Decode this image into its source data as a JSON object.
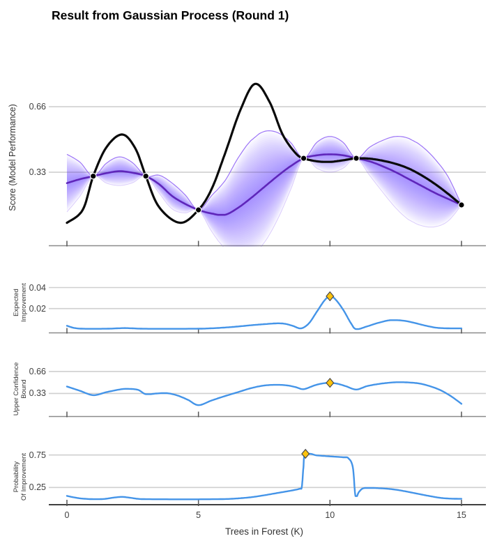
{
  "title": "Result from Gaussian Process (Round 1)",
  "colors": {
    "true_function": "#0a0a0a",
    "gp_mean": "#5B21B6",
    "gp_band": "#7C3AED",
    "gp_band_edge": "#8B5CF6",
    "acquisition_line": "#4494E8",
    "best_marker_fill": "#FFC30B",
    "best_marker_stroke": "#4a4a4a",
    "observation_fill": "#000000",
    "observation_ring": "#ffffff",
    "gridline": "#cfcfcf",
    "axis": "#8a8a8a",
    "axis_bottom": "#3f3f3f"
  },
  "chart_data": {
    "type": "line",
    "x_axis": {
      "label": "Trees in Forest (K)",
      "range": [
        0,
        15
      ],
      "ticks": [
        0,
        5,
        10,
        15
      ]
    },
    "panels": [
      {
        "key": "gp",
        "ylabel": "Score (Model Performance)",
        "yticks": [
          0.33,
          0.66
        ],
        "gp_grid_x": [
          0,
          0.5,
          1,
          1.5,
          2,
          2.5,
          3,
          3.5,
          4,
          4.5,
          5,
          5.5,
          6,
          6.5,
          7,
          7.5,
          8,
          8.5,
          9,
          9.5,
          10,
          10.5,
          11,
          11.5,
          12,
          12.5,
          13,
          13.5,
          14,
          14.5,
          15
        ],
        "gp_mean": [
          0.275,
          0.295,
          0.31,
          0.325,
          0.335,
          0.327,
          0.31,
          0.27,
          0.21,
          0.17,
          0.14,
          0.122,
          0.115,
          0.15,
          0.2,
          0.255,
          0.31,
          0.36,
          0.4,
          0.415,
          0.42,
          0.415,
          0.4,
          0.385,
          0.36,
          0.33,
          0.295,
          0.26,
          0.225,
          0.195,
          0.165
        ],
        "gp_sigma": [
          0.145,
          0.085,
          0,
          0.05,
          0.072,
          0.05,
          0,
          0.045,
          0.065,
          0.045,
          0,
          0.09,
          0.17,
          0.25,
          0.29,
          0.28,
          0.22,
          0.12,
          0,
          0.065,
          0.09,
          0.065,
          0,
          0.07,
          0.13,
          0.18,
          0.205,
          0.2,
          0.17,
          0.11,
          0
        ],
        "true_function": [
          [
            0,
            0.075
          ],
          [
            0.6,
            0.14
          ],
          [
            1,
            0.31
          ],
          [
            1.5,
            0.455
          ],
          [
            2.1,
            0.52
          ],
          [
            2.6,
            0.45
          ],
          [
            3,
            0.31
          ],
          [
            3.5,
            0.155
          ],
          [
            4.3,
            0.075
          ],
          [
            5,
            0.14
          ],
          [
            5.5,
            0.245
          ],
          [
            6,
            0.42
          ],
          [
            6.6,
            0.645
          ],
          [
            7.15,
            0.775
          ],
          [
            7.7,
            0.685
          ],
          [
            8.2,
            0.52
          ],
          [
            8.7,
            0.425
          ],
          [
            9,
            0.4
          ],
          [
            9.5,
            0.385
          ],
          [
            10,
            0.382
          ],
          [
            10.5,
            0.39
          ],
          [
            11,
            0.4
          ],
          [
            11.5,
            0.398
          ],
          [
            12,
            0.388
          ],
          [
            12.5,
            0.372
          ],
          [
            13,
            0.348
          ],
          [
            13.5,
            0.313
          ],
          [
            14,
            0.27
          ],
          [
            14.5,
            0.22
          ],
          [
            15,
            0.165
          ]
        ],
        "observations": [
          [
            1,
            0.31
          ],
          [
            3,
            0.31
          ],
          [
            5,
            0.14
          ],
          [
            9,
            0.4
          ],
          [
            11,
            0.4
          ],
          [
            15,
            0.165
          ]
        ]
      },
      {
        "key": "ei",
        "ylabel_lines": [
          "Expected",
          "Improvement"
        ],
        "yticks": [
          0.02,
          0.04
        ],
        "points": [
          [
            0,
            0.0037
          ],
          [
            0.3,
            0.0015
          ],
          [
            0.7,
            0.0008
          ],
          [
            1.2,
            0.0008
          ],
          [
            1.7,
            0.001
          ],
          [
            2.2,
            0.0015
          ],
          [
            2.7,
            0.001
          ],
          [
            3.2,
            0.0008
          ],
          [
            4,
            0.0008
          ],
          [
            5,
            0.0009
          ],
          [
            5.5,
            0.0013
          ],
          [
            6,
            0.002
          ],
          [
            6.5,
            0.003
          ],
          [
            7,
            0.0042
          ],
          [
            7.5,
            0.0052
          ],
          [
            8,
            0.006
          ],
          [
            8.3,
            0.0055
          ],
          [
            8.6,
            0.0035
          ],
          [
            8.9,
            0.0012
          ],
          [
            9.2,
            0.006
          ],
          [
            9.5,
            0.017
          ],
          [
            9.8,
            0.028
          ],
          [
            10,
            0.0317
          ],
          [
            10.2,
            0.029
          ],
          [
            10.5,
            0.019
          ],
          [
            10.8,
            0.006
          ],
          [
            11,
            0.0005
          ],
          [
            11.4,
            0.003
          ],
          [
            11.8,
            0.0062
          ],
          [
            12.3,
            0.009
          ],
          [
            12.8,
            0.0085
          ],
          [
            13.2,
            0.0065
          ],
          [
            13.6,
            0.004
          ],
          [
            14,
            0.002
          ],
          [
            14.4,
            0.0013
          ],
          [
            15,
            0.0012
          ]
        ],
        "best_candidate": [
          10,
          0.0317
        ]
      },
      {
        "key": "ucb",
        "ylabel_lines": [
          "Upper Confidence",
          "Bound"
        ],
        "yticks": [
          0.33,
          0.66
        ],
        "points": [
          [
            0,
            0.435
          ],
          [
            0.5,
            0.37
          ],
          [
            1,
            0.305
          ],
          [
            1.5,
            0.35
          ],
          [
            2,
            0.39
          ],
          [
            2.3,
            0.4
          ],
          [
            2.7,
            0.385
          ],
          [
            3,
            0.32
          ],
          [
            3.4,
            0.33
          ],
          [
            3.8,
            0.335
          ],
          [
            4.2,
            0.3
          ],
          [
            4.6,
            0.235
          ],
          [
            5,
            0.155
          ],
          [
            5.5,
            0.225
          ],
          [
            6,
            0.29
          ],
          [
            6.5,
            0.35
          ],
          [
            7,
            0.41
          ],
          [
            7.5,
            0.45
          ],
          [
            8,
            0.46
          ],
          [
            8.4,
            0.45
          ],
          [
            8.7,
            0.425
          ],
          [
            9,
            0.395
          ],
          [
            9.4,
            0.45
          ],
          [
            9.7,
            0.48
          ],
          [
            10,
            0.49
          ],
          [
            10.3,
            0.475
          ],
          [
            10.6,
            0.44
          ],
          [
            11,
            0.39
          ],
          [
            11.4,
            0.44
          ],
          [
            11.8,
            0.47
          ],
          [
            12.2,
            0.49
          ],
          [
            12.6,
            0.5
          ],
          [
            13,
            0.495
          ],
          [
            13.4,
            0.48
          ],
          [
            13.8,
            0.44
          ],
          [
            14.2,
            0.38
          ],
          [
            14.6,
            0.29
          ],
          [
            15,
            0.175
          ]
        ],
        "best_candidate": [
          10,
          0.49
        ]
      },
      {
        "key": "poi",
        "ylabel_lines": [
          "Probability",
          "Of Improvement"
        ],
        "yticks": [
          0.25,
          0.75
        ],
        "points": [
          [
            0,
            0.12
          ],
          [
            0.3,
            0.095
          ],
          [
            0.6,
            0.078
          ],
          [
            1,
            0.07
          ],
          [
            1.4,
            0.073
          ],
          [
            1.8,
            0.095
          ],
          [
            2.1,
            0.105
          ],
          [
            2.4,
            0.092
          ],
          [
            2.7,
            0.075
          ],
          [
            3,
            0.07
          ],
          [
            4,
            0.068
          ],
          [
            5,
            0.068
          ],
          [
            6,
            0.072
          ],
          [
            6.5,
            0.082
          ],
          [
            7,
            0.1
          ],
          [
            7.5,
            0.13
          ],
          [
            8,
            0.165
          ],
          [
            8.5,
            0.2
          ],
          [
            8.85,
            0.23
          ],
          [
            8.93,
            0.26
          ],
          [
            8.99,
            0.55
          ],
          [
            9.07,
            0.768
          ],
          [
            9.5,
            0.744
          ],
          [
            10,
            0.729
          ],
          [
            10.5,
            0.715
          ],
          [
            10.7,
            0.7
          ],
          [
            10.87,
            0.56
          ],
          [
            10.97,
            0.117
          ],
          [
            11.1,
            0.18
          ],
          [
            11.25,
            0.235
          ],
          [
            11.5,
            0.243
          ],
          [
            11.8,
            0.24
          ],
          [
            12.2,
            0.23
          ],
          [
            12.6,
            0.21
          ],
          [
            13,
            0.18
          ],
          [
            13.4,
            0.148
          ],
          [
            13.8,
            0.117
          ],
          [
            14.2,
            0.09
          ],
          [
            14.6,
            0.078
          ],
          [
            15,
            0.075
          ]
        ],
        "best_candidate": [
          9.07,
          0.768
        ]
      }
    ]
  }
}
